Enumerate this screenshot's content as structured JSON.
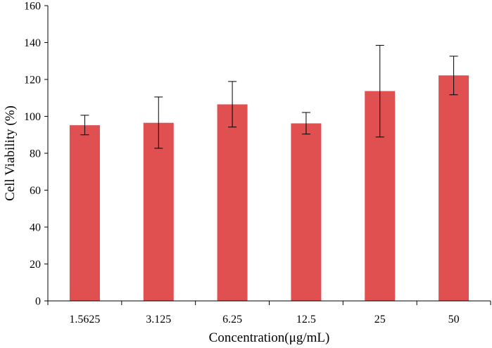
{
  "chart_data": {
    "type": "bar",
    "title": "",
    "xlabel": "Concentration(μg/mL)",
    "ylabel": "Cell Viability (%)",
    "categories": [
      "1.5625",
      "3.125",
      "6.25",
      "12.5",
      "25",
      "50"
    ],
    "values": [
      95.2,
      96.5,
      106.5,
      96.2,
      113.7,
      122.2
    ],
    "error_low": [
      90.0,
      82.7,
      94.2,
      90.4,
      88.8,
      111.7
    ],
    "error_high": [
      100.6,
      110.5,
      118.9,
      102.1,
      138.5,
      132.6
    ],
    "ylim": [
      0,
      160
    ],
    "yticks": [
      0,
      20,
      40,
      60,
      80,
      100,
      120,
      140,
      160
    ],
    "grid": false,
    "legend": "none",
    "bar_color": "#e05050"
  }
}
